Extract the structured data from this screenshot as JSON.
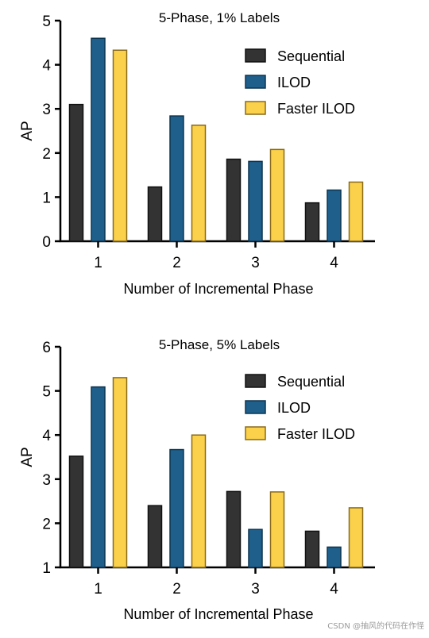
{
  "chart_data": [
    {
      "type": "bar",
      "title": "5-Phase, 1% Labels",
      "xlabel": "Number of Incremental Phase",
      "ylabel": "AP",
      "categories": [
        "1",
        "2",
        "3",
        "4"
      ],
      "ylim": [
        0,
        5
      ],
      "yticks": [
        "0",
        "1",
        "2",
        "3",
        "4",
        "5"
      ],
      "legend_position": "top-right",
      "series": [
        {
          "name": "Sequential",
          "color": "#333333",
          "values": [
            3.1,
            1.23,
            1.86,
            0.87
          ]
        },
        {
          "name": "ILOD",
          "color": "#1f5f8b",
          "values": [
            4.6,
            2.84,
            1.81,
            1.16
          ]
        },
        {
          "name": "Faster ILOD",
          "color": "#fbd14b",
          "values": [
            4.33,
            2.63,
            2.08,
            1.34
          ]
        }
      ]
    },
    {
      "type": "bar",
      "title": "5-Phase, 5% Labels",
      "xlabel": "Number of Incremental Phase",
      "ylabel": "AP",
      "categories": [
        "1",
        "2",
        "3",
        "4"
      ],
      "ylim": [
        1,
        6
      ],
      "yticks": [
        "1",
        "2",
        "3",
        "4",
        "5",
        "6"
      ],
      "legend_position": "top-right",
      "series": [
        {
          "name": "Sequential",
          "color": "#333333",
          "values": [
            3.52,
            2.4,
            2.72,
            1.82
          ]
        },
        {
          "name": "ILOD",
          "color": "#1f5f8b",
          "values": [
            5.09,
            3.67,
            1.86,
            1.46
          ]
        },
        {
          "name": "Faster ILOD",
          "color": "#fbd14b",
          "values": [
            5.3,
            4.0,
            2.71,
            2.35
          ]
        }
      ]
    }
  ],
  "watermark": "CSDN @抽风的代码在作怪",
  "edge_colors": {
    "Sequential": "#111111",
    "ILOD": "#0d3550",
    "Faster ILOD": "#8a6a1a"
  }
}
